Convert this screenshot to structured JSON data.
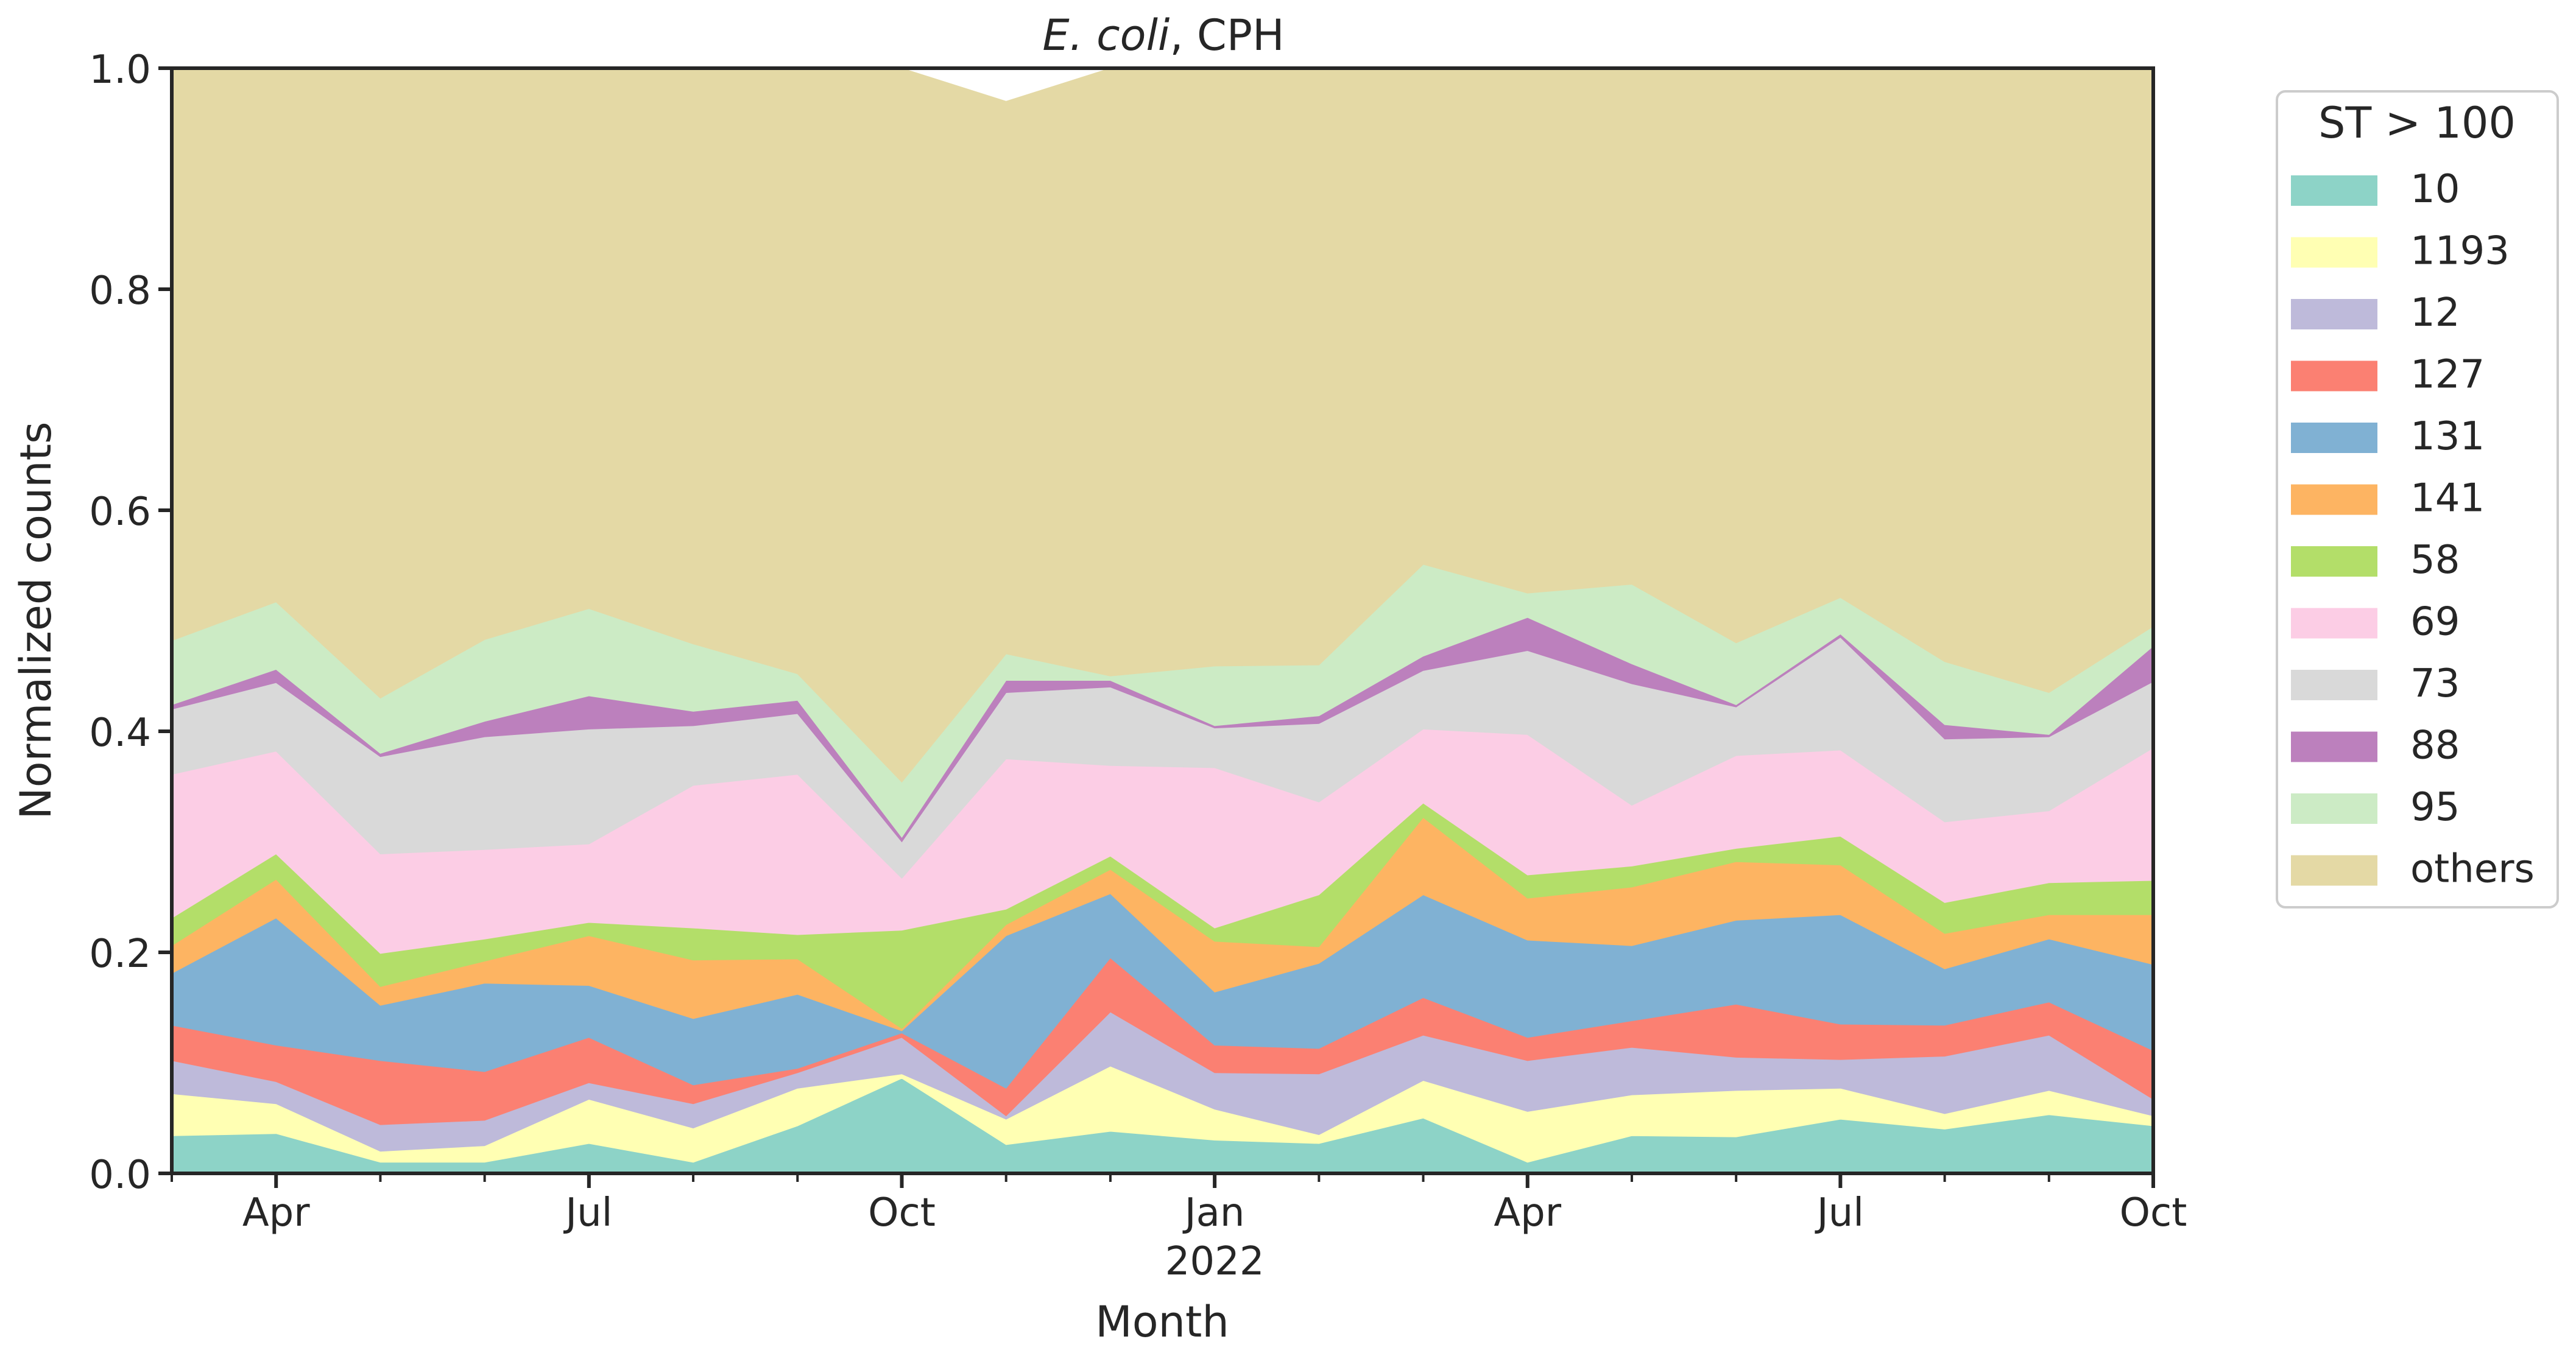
{
  "chart_data": {
    "type": "area",
    "stacked": true,
    "title": {
      "italic_part": "E. coli",
      "rest": ", CPH"
    },
    "xlabel": "Month",
    "ylabel": "Normalized counts",
    "ylim": [
      0,
      1
    ],
    "yticks": [
      "0.0",
      "0.2",
      "0.4",
      "0.6",
      "0.8",
      "1.0"
    ],
    "xlim": [
      "2021-03",
      "2022-10"
    ],
    "x": [
      "2021-03",
      "2021-04",
      "2021-05",
      "2021-06",
      "2021-07",
      "2021-08",
      "2021-09",
      "2021-10",
      "2021-11",
      "2021-12",
      "2022-01",
      "2022-02",
      "2022-03",
      "2022-04",
      "2022-05",
      "2022-06",
      "2022-07",
      "2022-08",
      "2022-09",
      "2022-10"
    ],
    "xtick_labels": [
      {
        "x": "2021-04",
        "label": "Apr"
      },
      {
        "x": "2021-07",
        "label": "Jul"
      },
      {
        "x": "2021-10",
        "label": "Oct"
      },
      {
        "x": "2022-01",
        "label": "Jan",
        "sublabel": "2022"
      },
      {
        "x": "2022-04",
        "label": "Apr"
      },
      {
        "x": "2022-07",
        "label": "Jul"
      },
      {
        "x": "2022-10",
        "label": "Oct"
      }
    ],
    "legend": {
      "title": "ST > 100",
      "placement": "outside-right"
    },
    "series": [
      {
        "name": "10",
        "color": "#8dd3c7",
        "values": [
          0.034,
          0.036,
          0.01,
          0.01,
          0.027,
          0.01,
          0.043,
          0.086,
          0.026,
          0.038,
          0.03,
          0.027,
          0.05,
          0.01,
          0.034,
          0.033,
          0.049,
          0.04,
          0.053,
          0.043
        ]
      },
      {
        "name": "1193",
        "color": "#ffffb3",
        "values": [
          0.038,
          0.027,
          0.01,
          0.015,
          0.04,
          0.031,
          0.034,
          0.004,
          0.023,
          0.059,
          0.028,
          0.008,
          0.034,
          0.046,
          0.037,
          0.042,
          0.028,
          0.014,
          0.022,
          0.009
        ]
      },
      {
        "name": "12",
        "color": "#bebada",
        "values": [
          0.03,
          0.02,
          0.024,
          0.023,
          0.015,
          0.022,
          0.014,
          0.033,
          0.003,
          0.049,
          0.033,
          0.055,
          0.041,
          0.046,
          0.043,
          0.03,
          0.026,
          0.052,
          0.05,
          0.015
        ]
      },
      {
        "name": "127",
        "color": "#fb8072",
        "values": [
          0.032,
          0.033,
          0.058,
          0.044,
          0.041,
          0.017,
          0.004,
          0.004,
          0.025,
          0.049,
          0.025,
          0.023,
          0.034,
          0.021,
          0.024,
          0.048,
          0.032,
          0.028,
          0.03,
          0.044
        ]
      },
      {
        "name": "131",
        "color": "#80b1d3",
        "values": [
          0.047,
          0.115,
          0.05,
          0.08,
          0.047,
          0.06,
          0.067,
          0.002,
          0.138,
          0.058,
          0.048,
          0.077,
          0.093,
          0.088,
          0.068,
          0.076,
          0.099,
          0.051,
          0.057,
          0.078
        ]
      },
      {
        "name": "141",
        "color": "#fdb462",
        "values": [
          0.025,
          0.035,
          0.017,
          0.02,
          0.045,
          0.053,
          0.032,
          0.002,
          0.01,
          0.022,
          0.046,
          0.015,
          0.07,
          0.038,
          0.053,
          0.053,
          0.045,
          0.032,
          0.022,
          0.045
        ]
      },
      {
        "name": "58",
        "color": "#b3de69",
        "values": [
          0.025,
          0.023,
          0.03,
          0.02,
          0.012,
          0.029,
          0.022,
          0.089,
          0.014,
          0.012,
          0.012,
          0.047,
          0.013,
          0.021,
          0.019,
          0.012,
          0.026,
          0.028,
          0.029,
          0.031
        ]
      },
      {
        "name": "69",
        "color": "#fccde5",
        "values": [
          0.13,
          0.093,
          0.09,
          0.081,
          0.071,
          0.129,
          0.145,
          0.047,
          0.136,
          0.082,
          0.145,
          0.084,
          0.067,
          0.127,
          0.055,
          0.084,
          0.078,
          0.073,
          0.065,
          0.12
        ]
      },
      {
        "name": "73",
        "color": "#d9d9d9",
        "values": [
          0.059,
          0.062,
          0.088,
          0.102,
          0.104,
          0.054,
          0.055,
          0.033,
          0.06,
          0.071,
          0.036,
          0.071,
          0.053,
          0.076,
          0.11,
          0.044,
          0.102,
          0.075,
          0.067,
          0.06
        ]
      },
      {
        "name": "88",
        "color": "#bc80bd",
        "values": [
          0.004,
          0.012,
          0.003,
          0.014,
          0.03,
          0.013,
          0.012,
          0.004,
          0.011,
          0.006,
          0.002,
          0.007,
          0.013,
          0.03,
          0.018,
          0.002,
          0.003,
          0.013,
          0.002,
          0.032
        ]
      },
      {
        "name": "95",
        "color": "#ccebc5",
        "values": [
          0.058,
          0.061,
          0.05,
          0.074,
          0.079,
          0.061,
          0.024,
          0.05,
          0.024,
          0.004,
          0.054,
          0.046,
          0.083,
          0.022,
          0.072,
          0.056,
          0.033,
          0.057,
          0.038,
          0.018
        ]
      },
      {
        "name": "others",
        "color": "#e4d9a5",
        "values": [
          0.518,
          0.483,
          0.57,
          0.517,
          0.489,
          0.521,
          0.548,
          0.646,
          0.5,
          0.55,
          0.541,
          0.54,
          0.449,
          0.475,
          0.467,
          0.52,
          0.479,
          0.537,
          0.565,
          0.505
        ]
      }
    ]
  }
}
